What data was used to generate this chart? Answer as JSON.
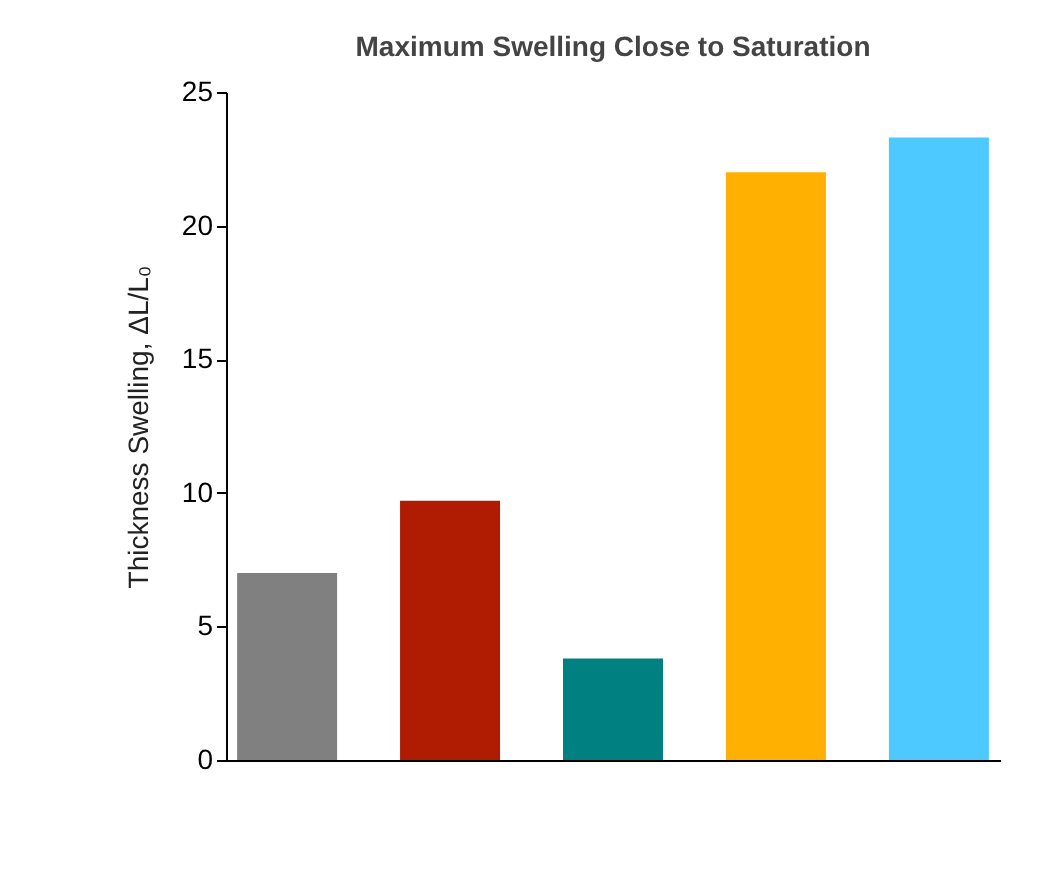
{
  "chart_data": {
    "type": "bar",
    "title": "Maximum Swelling Close to Saturation",
    "ylabel": "Thickness Swelling,   ΔL/L₀",
    "categories": [
      null,
      null,
      null,
      null,
      null
    ],
    "values": [
      7.0,
      9.7,
      3.8,
      22.0,
      23.3
    ],
    "colors": [
      "#808080",
      "#b01c02",
      "#008080",
      "#ffb000",
      "#4dc9ff"
    ],
    "ylim": [
      0,
      25
    ],
    "yticks": [
      0,
      5,
      10,
      15,
      20,
      25
    ],
    "tick_labels": "y",
    "grid": false,
    "legend": false
  }
}
